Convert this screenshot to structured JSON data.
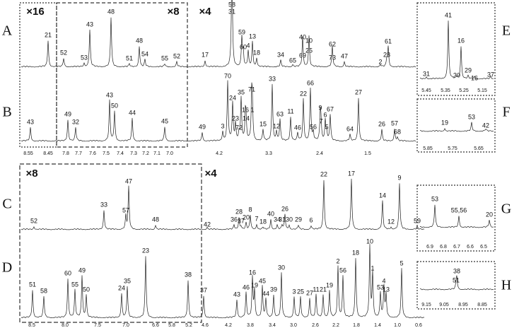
{
  "panels": [
    "A",
    "B",
    "C",
    "D",
    "E",
    "F",
    "G",
    "H"
  ],
  "scales": [
    "×16",
    "×8",
    "×4",
    "×8",
    "×4"
  ],
  "rows": {
    "A": [
      "21",
      "52",
      "43",
      "48",
      "53",
      "48",
      "51",
      "54",
      "55",
      "52",
      "58",
      "31",
      "13",
      "59",
      "60",
      "4",
      "18",
      "17",
      "34",
      "40",
      "10",
      "25",
      "69",
      "65",
      "62",
      "73",
      "47",
      "61",
      "2",
      "28"
    ],
    "B": [
      "43",
      "49",
      "32",
      "43",
      "50",
      "44",
      "45",
      "49",
      "3",
      "70",
      "24",
      "35",
      "71",
      "16",
      "1",
      "23",
      "72",
      "14",
      "33",
      "15",
      "12",
      "63",
      "11",
      "46",
      "22",
      "66",
      "9",
      "7",
      "27",
      "6",
      "67",
      "56",
      "5",
      "64",
      "26",
      "57",
      "68"
    ],
    "C": [
      "52",
      "33",
      "57",
      "47",
      "48",
      "42",
      "36",
      "28",
      "37",
      "20",
      "8",
      "7",
      "18",
      "26",
      "40",
      "34",
      "31",
      "30",
      "29",
      "6",
      "22",
      "17",
      "14",
      "12",
      "9",
      "59"
    ],
    "D": [
      "51",
      "58",
      "60",
      "49",
      "55",
      "50",
      "23",
      "35",
      "24",
      "38",
      "37",
      "43",
      "46",
      "16",
      "19",
      "45",
      "44",
      "39",
      "30",
      "3",
      "25",
      "27",
      "11",
      "21",
      "19",
      "2",
      "56",
      "18",
      "53",
      "10",
      "1",
      "4",
      "13",
      "5"
    ],
    "E": [
      "41",
      "31",
      "16",
      "30",
      "29",
      "16",
      "37"
    ],
    "F": [
      "19",
      "53",
      "42"
    ],
    "G": [
      "53",
      "55,56",
      "20"
    ],
    "H": [
      "38",
      "51"
    ]
  },
  "axes": {
    "top": [
      "8.55",
      "8.45",
      "7.8",
      "7.7",
      "7.6",
      "7.5",
      "7.4",
      "7.3",
      "7.2",
      "7.1",
      "7.0",
      "4.2",
      "3.3",
      "2.4",
      "1.5"
    ],
    "bottom": [
      "8.5",
      "8.0",
      "7.5",
      "7.0",
      "6.6",
      "5.8",
      "5.2",
      "4.6",
      "4.2",
      "3.8",
      "3.4",
      "3.0",
      "2.6",
      "2.2",
      "1.8",
      "1.4",
      "1.0",
      "0.6"
    ],
    "E": [
      "5.45",
      "5.35",
      "5.25",
      "5.15"
    ],
    "F": [
      "5.85",
      "5.75",
      "5.65"
    ],
    "G": [
      "6.9",
      "6.8",
      "6.7",
      "6.6",
      "6.5"
    ],
    "H": [
      "9.15",
      "9.05",
      "8.95",
      "8.85"
    ]
  }
}
